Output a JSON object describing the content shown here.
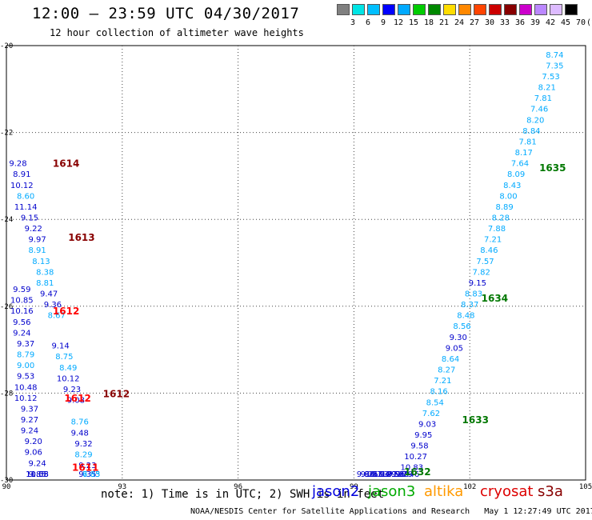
{
  "title": "12:00 – 23:59 UTC 04/30/2017",
  "subtitle": "12 hour collection of altimeter wave heights",
  "scale": {
    "unit": "(ft)",
    "colors": [
      "#808080",
      "#00e5e5",
      "#00bfff",
      "#0000ff",
      "#00aaff",
      "#00cc00",
      "#008800",
      "#ffdd00",
      "#ff8800",
      "#ff4400",
      "#cc0000",
      "#880000",
      "#cc00cc",
      "#bb88ff",
      "#ddbbff",
      "#000000"
    ],
    "labels": [
      "3",
      "6",
      "9",
      "12",
      "15",
      "18",
      "21",
      "24",
      "27",
      "30",
      "33",
      "36",
      "39",
      "42",
      "45",
      "70"
    ]
  },
  "axes": {
    "x_ticks": [
      "90",
      "93",
      "96",
      "99",
      "102",
      "105"
    ],
    "y_ticks": [
      "-20",
      "-22",
      "-24",
      "-26",
      "-28",
      "-30"
    ],
    "x_range": [
      90,
      105
    ],
    "y_range": [
      -30,
      -20
    ]
  },
  "tracks": [
    {
      "id": "1614",
      "color": "#880000",
      "lon": 91.2,
      "lat": -22.7
    },
    {
      "id": "1613",
      "color": "#880000",
      "lon": 91.6,
      "lat": -24.4
    },
    {
      "id": "1612",
      "color": "#ff0000",
      "lon": 91.2,
      "lat": -26.1
    },
    {
      "id": "1612",
      "color": "#ff0000",
      "lon": 91.5,
      "lat": -28.1
    },
    {
      "id": "1612",
      "color": "#880000",
      "lon": 92.5,
      "lat": -28.0
    },
    {
      "id": "1611",
      "color": "#ff0000",
      "lon": 91.7,
      "lat": -29.7
    },
    {
      "id": "1635",
      "color": "#007700",
      "lon": 103.8,
      "lat": -22.8
    },
    {
      "id": "1634",
      "color": "#007700",
      "lon": 102.3,
      "lat": -25.8
    },
    {
      "id": "1633",
      "color": "#007700",
      "lon": 101.8,
      "lat": -28.6
    },
    {
      "id": "1632",
      "color": "#007700",
      "lon": 100.3,
      "lat": -29.8
    }
  ],
  "points": [
    {
      "v": "9.28",
      "c": "#0000cc",
      "lon": 90.3,
      "lat": -22.7
    },
    {
      "v": "8.91",
      "c": "#0000cc",
      "lon": 90.4,
      "lat": -22.95
    },
    {
      "v": "10.12",
      "c": "#0000cc",
      "lon": 90.4,
      "lat": -23.2
    },
    {
      "v": "8.60",
      "c": "#00aaff",
      "lon": 90.5,
      "lat": -23.45
    },
    {
      "v": "11.14",
      "c": "#0000cc",
      "lon": 90.5,
      "lat": -23.7
    },
    {
      "v": "9.15",
      "c": "#0000cc",
      "lon": 90.6,
      "lat": -23.95
    },
    {
      "v": "9.22",
      "c": "#0000cc",
      "lon": 90.7,
      "lat": -24.2
    },
    {
      "v": "9.97",
      "c": "#0000cc",
      "lon": 90.8,
      "lat": -24.45
    },
    {
      "v": "8.91",
      "c": "#00aaff",
      "lon": 90.8,
      "lat": -24.7
    },
    {
      "v": "8.13",
      "c": "#00aaff",
      "lon": 90.9,
      "lat": -24.95
    },
    {
      "v": "8.38",
      "c": "#00aaff",
      "lon": 91.0,
      "lat": -25.2
    },
    {
      "v": "8.81",
      "c": "#00aaff",
      "lon": 91.0,
      "lat": -25.45
    },
    {
      "v": "9.47",
      "c": "#0000cc",
      "lon": 91.1,
      "lat": -25.7
    },
    {
      "v": "9.36",
      "c": "#0000cc",
      "lon": 91.2,
      "lat": -25.95
    },
    {
      "v": "8.67",
      "c": "#00aaff",
      "lon": 91.3,
      "lat": -26.2
    },
    {
      "v": "9.59",
      "c": "#0000cc",
      "lon": 90.4,
      "lat": -25.6
    },
    {
      "v": "10.85",
      "c": "#0000cc",
      "lon": 90.4,
      "lat": -25.85
    },
    {
      "v": "10.16",
      "c": "#0000cc",
      "lon": 90.4,
      "lat": -26.1
    },
    {
      "v": "9.56",
      "c": "#0000cc",
      "lon": 90.4,
      "lat": -26.35
    },
    {
      "v": "9.24",
      "c": "#0000cc",
      "lon": 90.4,
      "lat": -26.6
    },
    {
      "v": "9.37",
      "c": "#0000cc",
      "lon": 90.5,
      "lat": -26.85
    },
    {
      "v": "8.79",
      "c": "#00aaff",
      "lon": 90.5,
      "lat": -27.1
    },
    {
      "v": "9.00",
      "c": "#00aaff",
      "lon": 90.5,
      "lat": -27.35
    },
    {
      "v": "9.53",
      "c": "#0000cc",
      "lon": 90.5,
      "lat": -27.6
    },
    {
      "v": "10.48",
      "c": "#0000cc",
      "lon": 90.5,
      "lat": -27.85
    },
    {
      "v": "10.12",
      "c": "#0000cc",
      "lon": 90.5,
      "lat": -28.1
    },
    {
      "v": "9.37",
      "c": "#0000cc",
      "lon": 90.6,
      "lat": -28.35
    },
    {
      "v": "9.27",
      "c": "#0000cc",
      "lon": 90.6,
      "lat": -28.6
    },
    {
      "v": "9.24",
      "c": "#0000cc",
      "lon": 90.6,
      "lat": -28.85
    },
    {
      "v": "9.20",
      "c": "#0000cc",
      "lon": 90.7,
      "lat": -29.1
    },
    {
      "v": "9.06",
      "c": "#0000cc",
      "lon": 90.7,
      "lat": -29.35
    },
    {
      "v": "9.24",
      "c": "#0000cc",
      "lon": 90.8,
      "lat": -29.6
    },
    {
      "v": "11.05",
      "c": "#0000cc",
      "lon": 90.8,
      "lat": -29.85
    },
    {
      "v": "9.85",
      "c": "#0000cc",
      "lon": 90.8,
      "lat": -30.1
    },
    {
      "v": "10.58",
      "c": "#0000cc",
      "lon": 90.8,
      "lat": -30.35
    },
    {
      "v": "9.14",
      "c": "#0000cc",
      "lon": 91.4,
      "lat": -26.9
    },
    {
      "v": "8.75",
      "c": "#00aaff",
      "lon": 91.5,
      "lat": -27.15
    },
    {
      "v": "8.49",
      "c": "#00aaff",
      "lon": 91.6,
      "lat": -27.4
    },
    {
      "v": "10.12",
      "c": "#0000cc",
      "lon": 91.6,
      "lat": -27.65
    },
    {
      "v": "9.23",
      "c": "#0000cc",
      "lon": 91.7,
      "lat": -27.9
    },
    {
      "v": "9.08",
      "c": "#0000cc",
      "lon": 91.8,
      "lat": -28.15
    },
    {
      "v": "8.76",
      "c": "#00aaff",
      "lon": 91.9,
      "lat": -28.65
    },
    {
      "v": "9.48",
      "c": "#0000cc",
      "lon": 91.9,
      "lat": -28.9
    },
    {
      "v": "9.32",
      "c": "#0000cc",
      "lon": 92.0,
      "lat": -29.15
    },
    {
      "v": "8.29",
      "c": "#00aaff",
      "lon": 92.0,
      "lat": -29.4
    },
    {
      "v": "9.23",
      "c": "#0000cc",
      "lon": 92.1,
      "lat": -29.65
    },
    {
      "v": "9.35",
      "c": "#0000cc",
      "lon": 92.1,
      "lat": -29.9
    },
    {
      "v": "7.85",
      "c": "#00aaff",
      "lon": 92.2,
      "lat": -30.15
    },
    {
      "v": "6.83",
      "c": "#00aaff",
      "lon": 92.2,
      "lat": -30.4
    },
    {
      "v": "8.74",
      "c": "#00aaff",
      "lon": 104.2,
      "lat": -20.2
    },
    {
      "v": "7.35",
      "c": "#00aaff",
      "lon": 104.2,
      "lat": -20.45
    },
    {
      "v": "7.53",
      "c": "#00aaff",
      "lon": 104.1,
      "lat": -20.7
    },
    {
      "v": "8.21",
      "c": "#00aaff",
      "lon": 104.0,
      "lat": -20.95
    },
    {
      "v": "7.81",
      "c": "#00aaff",
      "lon": 103.9,
      "lat": -21.2
    },
    {
      "v": "7.46",
      "c": "#00aaff",
      "lon": 103.8,
      "lat": -21.45
    },
    {
      "v": "8.20",
      "c": "#00aaff",
      "lon": 103.7,
      "lat": -21.7
    },
    {
      "v": "8.84",
      "c": "#00aaff",
      "lon": 103.6,
      "lat": -21.95
    },
    {
      "v": "7.81",
      "c": "#00aaff",
      "lon": 103.5,
      "lat": -22.2
    },
    {
      "v": "8.17",
      "c": "#00aaff",
      "lon": 103.4,
      "lat": -22.45
    },
    {
      "v": "7.64",
      "c": "#00aaff",
      "lon": 103.3,
      "lat": -22.7
    },
    {
      "v": "8.09",
      "c": "#00aaff",
      "lon": 103.2,
      "lat": -22.95
    },
    {
      "v": "8.43",
      "c": "#00aaff",
      "lon": 103.1,
      "lat": -23.2
    },
    {
      "v": "8.00",
      "c": "#00aaff",
      "lon": 103.0,
      "lat": -23.45
    },
    {
      "v": "8.89",
      "c": "#00aaff",
      "lon": 102.9,
      "lat": -23.7
    },
    {
      "v": "8.28",
      "c": "#00aaff",
      "lon": 102.8,
      "lat": -23.95
    },
    {
      "v": "7.88",
      "c": "#00aaff",
      "lon": 102.7,
      "lat": -24.2
    },
    {
      "v": "7.21",
      "c": "#00aaff",
      "lon": 102.6,
      "lat": -24.45
    },
    {
      "v": "8.46",
      "c": "#00aaff",
      "lon": 102.5,
      "lat": -24.7
    },
    {
      "v": "7.57",
      "c": "#00aaff",
      "lon": 102.4,
      "lat": -24.95
    },
    {
      "v": "7.82",
      "c": "#00aaff",
      "lon": 102.3,
      "lat": -25.2
    },
    {
      "v": "9.15",
      "c": "#0000cc",
      "lon": 102.2,
      "lat": -25.45
    },
    {
      "v": "8.83",
      "c": "#00aaff",
      "lon": 102.1,
      "lat": -25.7
    },
    {
      "v": "8.37",
      "c": "#00aaff",
      "lon": 102.0,
      "lat": -25.95
    },
    {
      "v": "8.48",
      "c": "#00aaff",
      "lon": 101.9,
      "lat": -26.2
    },
    {
      "v": "8.56",
      "c": "#00aaff",
      "lon": 101.8,
      "lat": -26.45
    },
    {
      "v": "9.30",
      "c": "#0000cc",
      "lon": 101.7,
      "lat": -26.7
    },
    {
      "v": "9.05",
      "c": "#0000cc",
      "lon": 101.6,
      "lat": -26.95
    },
    {
      "v": "8.64",
      "c": "#00aaff",
      "lon": 101.5,
      "lat": -27.2
    },
    {
      "v": "8.27",
      "c": "#00aaff",
      "lon": 101.4,
      "lat": -27.45
    },
    {
      "v": "7.21",
      "c": "#00aaff",
      "lon": 101.3,
      "lat": -27.7
    },
    {
      "v": "8.16",
      "c": "#00aaff",
      "lon": 101.2,
      "lat": -27.95
    },
    {
      "v": "8.54",
      "c": "#00aaff",
      "lon": 101.1,
      "lat": -28.2
    },
    {
      "v": "7.62",
      "c": "#00aaff",
      "lon": 101.0,
      "lat": -28.45
    },
    {
      "v": "9.03",
      "c": "#0000cc",
      "lon": 100.9,
      "lat": -28.7
    },
    {
      "v": "9.95",
      "c": "#0000cc",
      "lon": 100.8,
      "lat": -28.95
    },
    {
      "v": "9.58",
      "c": "#0000cc",
      "lon": 100.7,
      "lat": -29.2
    },
    {
      "v": "10.27",
      "c": "#0000cc",
      "lon": 100.6,
      "lat": -29.45
    },
    {
      "v": "10.83",
      "c": "#0000cc",
      "lon": 100.5,
      "lat": -29.7
    },
    {
      "v": "10.46",
      "c": "#0000cc",
      "lon": 100.4,
      "lat": -29.95
    },
    {
      "v": "9.79",
      "c": "#0000cc",
      "lon": 100.3,
      "lat": -30.2
    },
    {
      "v": "9.69",
      "c": "#0000cc",
      "lon": 100.2,
      "lat": -30.45
    },
    {
      "v": "9.96",
      "c": "#0000cc",
      "lon": 100.1,
      "lat": -30.7
    },
    {
      "v": "10.53",
      "c": "#0000cc",
      "lon": 100.0,
      "lat": -30.95
    },
    {
      "v": "9.71",
      "c": "#0000cc",
      "lon": 99.9,
      "lat": -31.2
    },
    {
      "v": "10.29",
      "c": "#0000cc",
      "lon": 99.8,
      "lat": -31.45
    },
    {
      "v": "9.94",
      "c": "#0000cc",
      "lon": 99.7,
      "lat": -31.7
    },
    {
      "v": "10.13",
      "c": "#0000cc",
      "lon": 99.6,
      "lat": -31.95
    },
    {
      "v": "9.67",
      "c": "#0000cc",
      "lon": 99.5,
      "lat": -32.2
    },
    {
      "v": "9.25",
      "c": "#0000cc",
      "lon": 99.4,
      "lat": -32.45
    },
    {
      "v": "9.86",
      "c": "#0000cc",
      "lon": 99.3,
      "lat": -32.7
    }
  ],
  "note": "note:  1) Time is in UTC;  2) SWH is in feet",
  "satellites": [
    {
      "name": "jason2",
      "color": "#0000dd"
    },
    {
      "name": "jason3",
      "color": "#00aa00"
    },
    {
      "name": "altika",
      "color": "#ff9900"
    },
    {
      "name": "cryosat",
      "color": "#dd0000"
    },
    {
      "name": "s3a",
      "color": "#880000"
    }
  ],
  "footer": {
    "agency": "NOAA/NESDIS Center for Satellite Applications and Research",
    "timestamp": "May  1 12:27:49 UTC 2017"
  }
}
